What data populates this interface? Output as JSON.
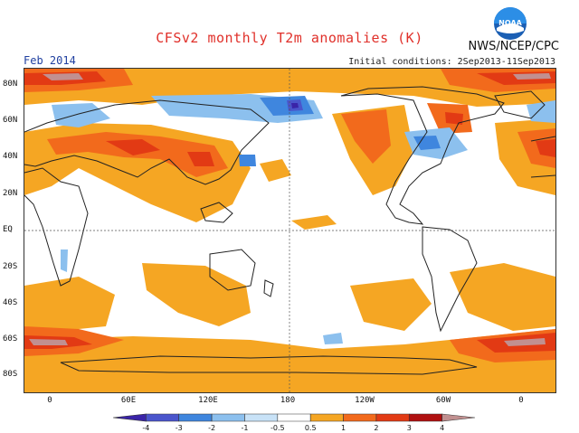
{
  "header": {
    "title": "CFSv2 monthly T2m anomalies (K)",
    "credit": "NWS/NCEP/CPC",
    "logo_text": "NOAA",
    "period": "Feb 2014",
    "initial_conditions": "Initial conditions: 2Sep2013-11Sep2013"
  },
  "axes": {
    "lat_labels": [
      "80N",
      "60N",
      "40N",
      "20N",
      "EQ",
      "20S",
      "40S",
      "60S",
      "80S"
    ],
    "lon_labels": [
      "0",
      "60E",
      "120E",
      "180",
      "120W",
      "60W",
      "0"
    ]
  },
  "colorbar": {
    "labels": [
      "-4",
      "-3",
      "-2",
      "-1",
      "-0.5",
      "0.5",
      "1",
      "2",
      "3",
      "4"
    ],
    "colors": [
      "#3a24a8",
      "#4a55cc",
      "#3f86de",
      "#8cc0ee",
      "#c8e2f7",
      "#ffffff",
      "#f5a623",
      "#f26a1c",
      "#e23a14",
      "#b01010",
      "#c19090"
    ]
  },
  "colors": {
    "warm1": "#f5a623",
    "warm2": "#f26a1c",
    "warm3": "#e23a14",
    "warm4": "#b01010",
    "warm5": "#c19090",
    "cool1": "#8cc0ee",
    "cool2": "#3f86de",
    "cool3": "#4a55cc",
    "cool4": "#3a24a8"
  }
}
